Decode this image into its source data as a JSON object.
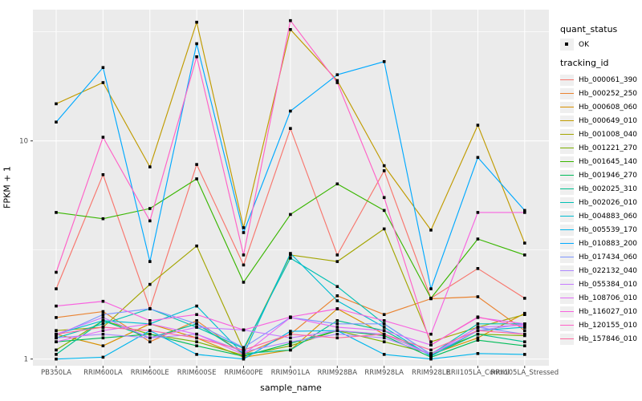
{
  "figure": {
    "panel_bg": "#EBEBEB",
    "grid_color": "#FFFFFF",
    "tick_color": "#333333",
    "tick_label_color": "#4D4D4D",
    "point_color": "#000000"
  },
  "legend": {
    "quant_title": "quant_status",
    "quant_items": [
      {
        "label": "OK",
        "shape": "black-square-point"
      }
    ],
    "tracking_title": "tracking_id"
  },
  "chart_data": {
    "type": "line",
    "title": "",
    "xlabel": "sample_name",
    "ylabel": "FPKM + 1",
    "y_scale": "log10",
    "y_major_ticks": [
      1,
      10
    ],
    "y_minor_ticks": [
      3.1623,
      31.623
    ],
    "ylim": [
      0.93,
      40
    ],
    "grid": true,
    "legend_position": "right",
    "point_shape": "filled-square",
    "quant_status": "OK",
    "categories": [
      "PB350LA",
      "RRIM600LA",
      "RRIM600LE",
      "RRIM600SE",
      "RRIM600PE",
      "RRIM901LA",
      "RRIM928BA",
      "RRIM928LA",
      "RRIM928LE",
      "RRII105LA_Control",
      "RRII105LA_Stressed"
    ],
    "series": [
      {
        "name": "Hb_000061_390",
        "color": "#F8766D",
        "values": [
          2.1,
          7.0,
          1.7,
          7.8,
          2.7,
          11.4,
          3.0,
          7.3,
          1.9,
          2.6,
          1.9
        ]
      },
      {
        "name": "Hb_000252_250",
        "color": "#EA8331",
        "values": [
          1.55,
          1.65,
          1.2,
          1.5,
          1.05,
          1.3,
          1.95,
          1.6,
          1.89,
          1.93,
          1.35
        ]
      },
      {
        "name": "Hb_000608_060",
        "color": "#D89000",
        "values": [
          1.3,
          1.15,
          1.45,
          1.25,
          1.02,
          1.1,
          1.7,
          1.3,
          1.05,
          1.25,
          1.62
        ]
      },
      {
        "name": "Hb_000649_010",
        "color": "#C09B00",
        "values": [
          14.8,
          18.5,
          7.6,
          35.0,
          4.0,
          32.4,
          18.9,
          7.7,
          3.9,
          11.8,
          3.4
        ]
      },
      {
        "name": "Hb_001008_040",
        "color": "#A3A500",
        "values": [
          1.35,
          1.4,
          2.2,
          3.3,
          1.1,
          3.0,
          2.8,
          3.95,
          1.2,
          1.4,
          1.6
        ]
      },
      {
        "name": "Hb_001221_270",
        "color": "#7CAE00",
        "values": [
          1.1,
          1.5,
          1.3,
          1.2,
          1.04,
          1.15,
          1.35,
          1.2,
          1.06,
          1.3,
          1.28
        ]
      },
      {
        "name": "Hb_001645_140",
        "color": "#39B600",
        "values": [
          4.7,
          4.4,
          4.9,
          6.7,
          2.25,
          4.6,
          6.35,
          4.8,
          1.9,
          3.55,
          3.0
        ]
      },
      {
        "name": "Hb_001946_270",
        "color": "#00BC59",
        "values": [
          1.2,
          1.25,
          1.3,
          1.15,
          1.03,
          1.18,
          1.35,
          1.28,
          1.02,
          1.22,
          1.15
        ]
      },
      {
        "name": "Hb_002025_310",
        "color": "#00C08E",
        "values": [
          1.05,
          1.5,
          1.25,
          1.45,
          1.06,
          1.1,
          1.5,
          1.35,
          1.04,
          1.3,
          1.2
        ]
      },
      {
        "name": "Hb_002026_010",
        "color": "#00C0B4",
        "values": [
          1.25,
          1.45,
          1.7,
          1.4,
          1.12,
          2.9,
          2.15,
          1.45,
          1.05,
          1.45,
          1.45
        ]
      },
      {
        "name": "Hb_004883_060",
        "color": "#00BDD2",
        "values": [
          1.3,
          1.5,
          1.45,
          1.75,
          1.05,
          3.05,
          1.85,
          1.4,
          1.03,
          1.35,
          1.4
        ]
      },
      {
        "name": "Hb_005539_170",
        "color": "#00B5EC",
        "values": [
          1.0,
          1.02,
          1.35,
          1.05,
          1.0,
          1.34,
          1.35,
          1.05,
          1.0,
          1.06,
          1.05
        ]
      },
      {
        "name": "Hb_010883_200",
        "color": "#00A9FF",
        "values": [
          12.2,
          21.7,
          2.8,
          27.9,
          3.8,
          13.7,
          20.1,
          23.1,
          2.1,
          8.4,
          4.8
        ]
      },
      {
        "name": "Hb_017434_060",
        "color": "#7E96FF",
        "values": [
          1.28,
          1.6,
          1.7,
          1.45,
          1.13,
          1.55,
          1.45,
          1.45,
          1.05,
          1.4,
          1.3
        ]
      },
      {
        "name": "Hb_022132_040",
        "color": "#AE87FF",
        "values": [
          1.25,
          1.3,
          1.25,
          1.3,
          1.08,
          1.2,
          1.3,
          1.25,
          1.05,
          1.35,
          1.45
        ]
      },
      {
        "name": "Hb_055384_010",
        "color": "#C77CFF",
        "values": [
          1.3,
          1.55,
          1.25,
          1.4,
          1.36,
          1.25,
          1.35,
          1.3,
          1.05,
          1.4,
          1.43
        ]
      },
      {
        "name": "Hb_108706_010",
        "color": "#E36EF6",
        "values": [
          1.2,
          1.35,
          1.45,
          1.3,
          1.05,
          1.55,
          1.4,
          1.35,
          1.16,
          1.55,
          1.45
        ]
      },
      {
        "name": "Hb_116027_010",
        "color": "#F863DF",
        "values": [
          1.75,
          1.84,
          1.5,
          1.6,
          1.36,
          1.56,
          1.7,
          1.5,
          1.3,
          4.7,
          4.7
        ]
      },
      {
        "name": "Hb_120155_010",
        "color": "#FF61C7",
        "values": [
          2.5,
          10.4,
          4.3,
          24.3,
          3.0,
          35.6,
          18.5,
          5.5,
          1.16,
          1.56,
          1.4
        ]
      },
      {
        "name": "Hb_157846_010",
        "color": "#FF689E",
        "values": [
          1.3,
          1.4,
          1.35,
          1.25,
          1.1,
          1.3,
          1.25,
          1.3,
          1.1,
          1.35,
          1.3
        ]
      }
    ]
  }
}
